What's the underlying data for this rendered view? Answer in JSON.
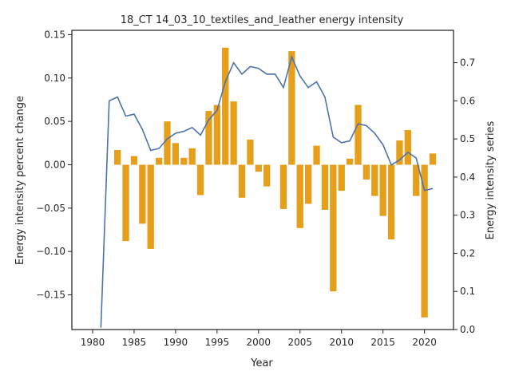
{
  "chart_data": {
    "type": "bar+line",
    "title": "18_CT 14_03_10_textiles_and_leather energy intensity",
    "xlabel": "Year",
    "ylabel_left": "Energy intensity percent change",
    "ylabel_right": "Energy intensity series",
    "xlim": [
      1977.5,
      2023.5
    ],
    "ylim_left": [
      -0.19,
      0.155
    ],
    "ylim_right": [
      0.0,
      0.785
    ],
    "x_ticks": [
      1980,
      1985,
      1990,
      1995,
      2000,
      2005,
      2010,
      2015,
      2020
    ],
    "x_tick_labels": [
      "1980",
      "1985",
      "1990",
      "1995",
      "2000",
      "2005",
      "2010",
      "2015",
      "2020"
    ],
    "y_left_ticks": [
      -0.15,
      -0.1,
      -0.05,
      0.0,
      0.05,
      0.1,
      0.15
    ],
    "y_left_tick_labels": [
      "−0.15",
      "−0.10",
      "−0.05",
      "0.00",
      "0.05",
      "0.10",
      "0.15"
    ],
    "y_right_ticks": [
      0.0,
      0.1,
      0.2,
      0.3,
      0.4,
      0.5,
      0.6,
      0.7
    ],
    "y_right_tick_labels": [
      "0.0",
      "0.1",
      "0.2",
      "0.3",
      "0.4",
      "0.5",
      "0.6",
      "0.7"
    ],
    "bar_color": "#e69f1a",
    "line_color": "#4c72b0",
    "bars": {
      "x": [
        1983,
        1984,
        1985,
        1986,
        1987,
        1988,
        1989,
        1990,
        1991,
        1992,
        1993,
        1994,
        1995,
        1996,
        1997,
        1998,
        1999,
        2000,
        2001,
        2002,
        2003,
        2004,
        2005,
        2006,
        2007,
        2008,
        2009,
        2010,
        2011,
        2012,
        2013,
        2014,
        2015,
        2016,
        2017,
        2018,
        2019,
        2020,
        2021
      ],
      "values": [
        0.017,
        -0.088,
        0.01,
        -0.068,
        -0.097,
        0.008,
        0.05,
        0.025,
        0.008,
        0.019,
        -0.035,
        0.062,
        0.069,
        0.135,
        0.073,
        -0.038,
        0.029,
        -0.008,
        -0.025,
        0.0,
        -0.051,
        0.131,
        -0.073,
        -0.045,
        0.022,
        -0.052,
        -0.146,
        -0.03,
        0.007,
        0.069,
        -0.017,
        -0.036,
        -0.059,
        -0.086,
        0.028,
        0.04,
        -0.036,
        -0.176,
        0.013
      ]
    },
    "line": {
      "x": [
        1981,
        1982,
        1983,
        1984,
        1985,
        1986,
        1987,
        1988,
        1989,
        1990,
        1991,
        1992,
        1993,
        1994,
        1995,
        1996,
        1997,
        1998,
        1999,
        2000,
        2001,
        2002,
        2003,
        2004,
        2005,
        2006,
        2007,
        2008,
        2009,
        2010,
        2011,
        2012,
        2013,
        2014,
        2015,
        2016,
        2017,
        2018,
        2019,
        2020,
        2021
      ],
      "values": [
        0.005,
        0.6,
        0.61,
        0.56,
        0.565,
        0.525,
        0.47,
        0.475,
        0.5,
        0.515,
        0.52,
        0.53,
        0.51,
        0.55,
        0.575,
        0.65,
        0.7,
        0.67,
        0.69,
        0.685,
        0.67,
        0.67,
        0.635,
        0.715,
        0.665,
        0.635,
        0.65,
        0.61,
        0.505,
        0.49,
        0.495,
        0.54,
        0.535,
        0.515,
        0.485,
        0.432,
        0.445,
        0.465,
        0.45,
        0.365,
        0.37
      ]
    }
  }
}
